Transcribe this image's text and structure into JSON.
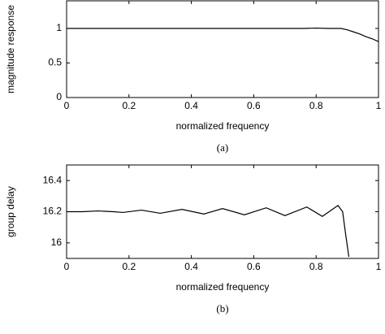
{
  "chart_data": [
    {
      "type": "line",
      "xlabel": "normalized frequency",
      "ylabel": "magnitude response",
      "caption": "(a)",
      "xlim": [
        0,
        1
      ],
      "xticks": [
        0,
        0.2,
        0.4,
        0.6,
        0.8,
        1
      ],
      "ylim": [
        0,
        1.4
      ],
      "yticks": [
        0,
        0.5,
        1
      ],
      "series": [
        {
          "color": "#000000",
          "x": [
            0,
            0.2,
            0.4,
            0.6,
            0.76,
            0.8,
            0.84,
            0.88,
            0.9,
            0.92,
            0.94,
            0.96,
            0.98,
            1
          ],
          "values": [
            1,
            1,
            1,
            1,
            1,
            1.005,
            1,
            1,
            0.98,
            0.95,
            0.92,
            0.88,
            0.85,
            0.81
          ]
        }
      ]
    },
    {
      "type": "line",
      "xlabel": "normalized frequency",
      "ylabel": "group delay",
      "caption": "(b)",
      "xlim": [
        0,
        1
      ],
      "xticks": [
        0,
        0.2,
        0.4,
        0.6,
        0.8,
        1
      ],
      "ylim": [
        15.9,
        16.5
      ],
      "yticks": [
        16,
        16.2,
        16.4
      ],
      "series": [
        {
          "color": "#000000",
          "x": [
            0,
            0.05,
            0.1,
            0.15,
            0.18,
            0.24,
            0.3,
            0.37,
            0.44,
            0.5,
            0.57,
            0.64,
            0.7,
            0.77,
            0.82,
            0.87,
            0.885,
            0.895,
            0.905
          ],
          "values": [
            16.2,
            16.2,
            16.205,
            16.2,
            16.195,
            16.21,
            16.19,
            16.215,
            16.185,
            16.22,
            16.18,
            16.225,
            16.175,
            16.23,
            16.17,
            16.24,
            16.2,
            16.05,
            15.91
          ]
        }
      ]
    }
  ]
}
